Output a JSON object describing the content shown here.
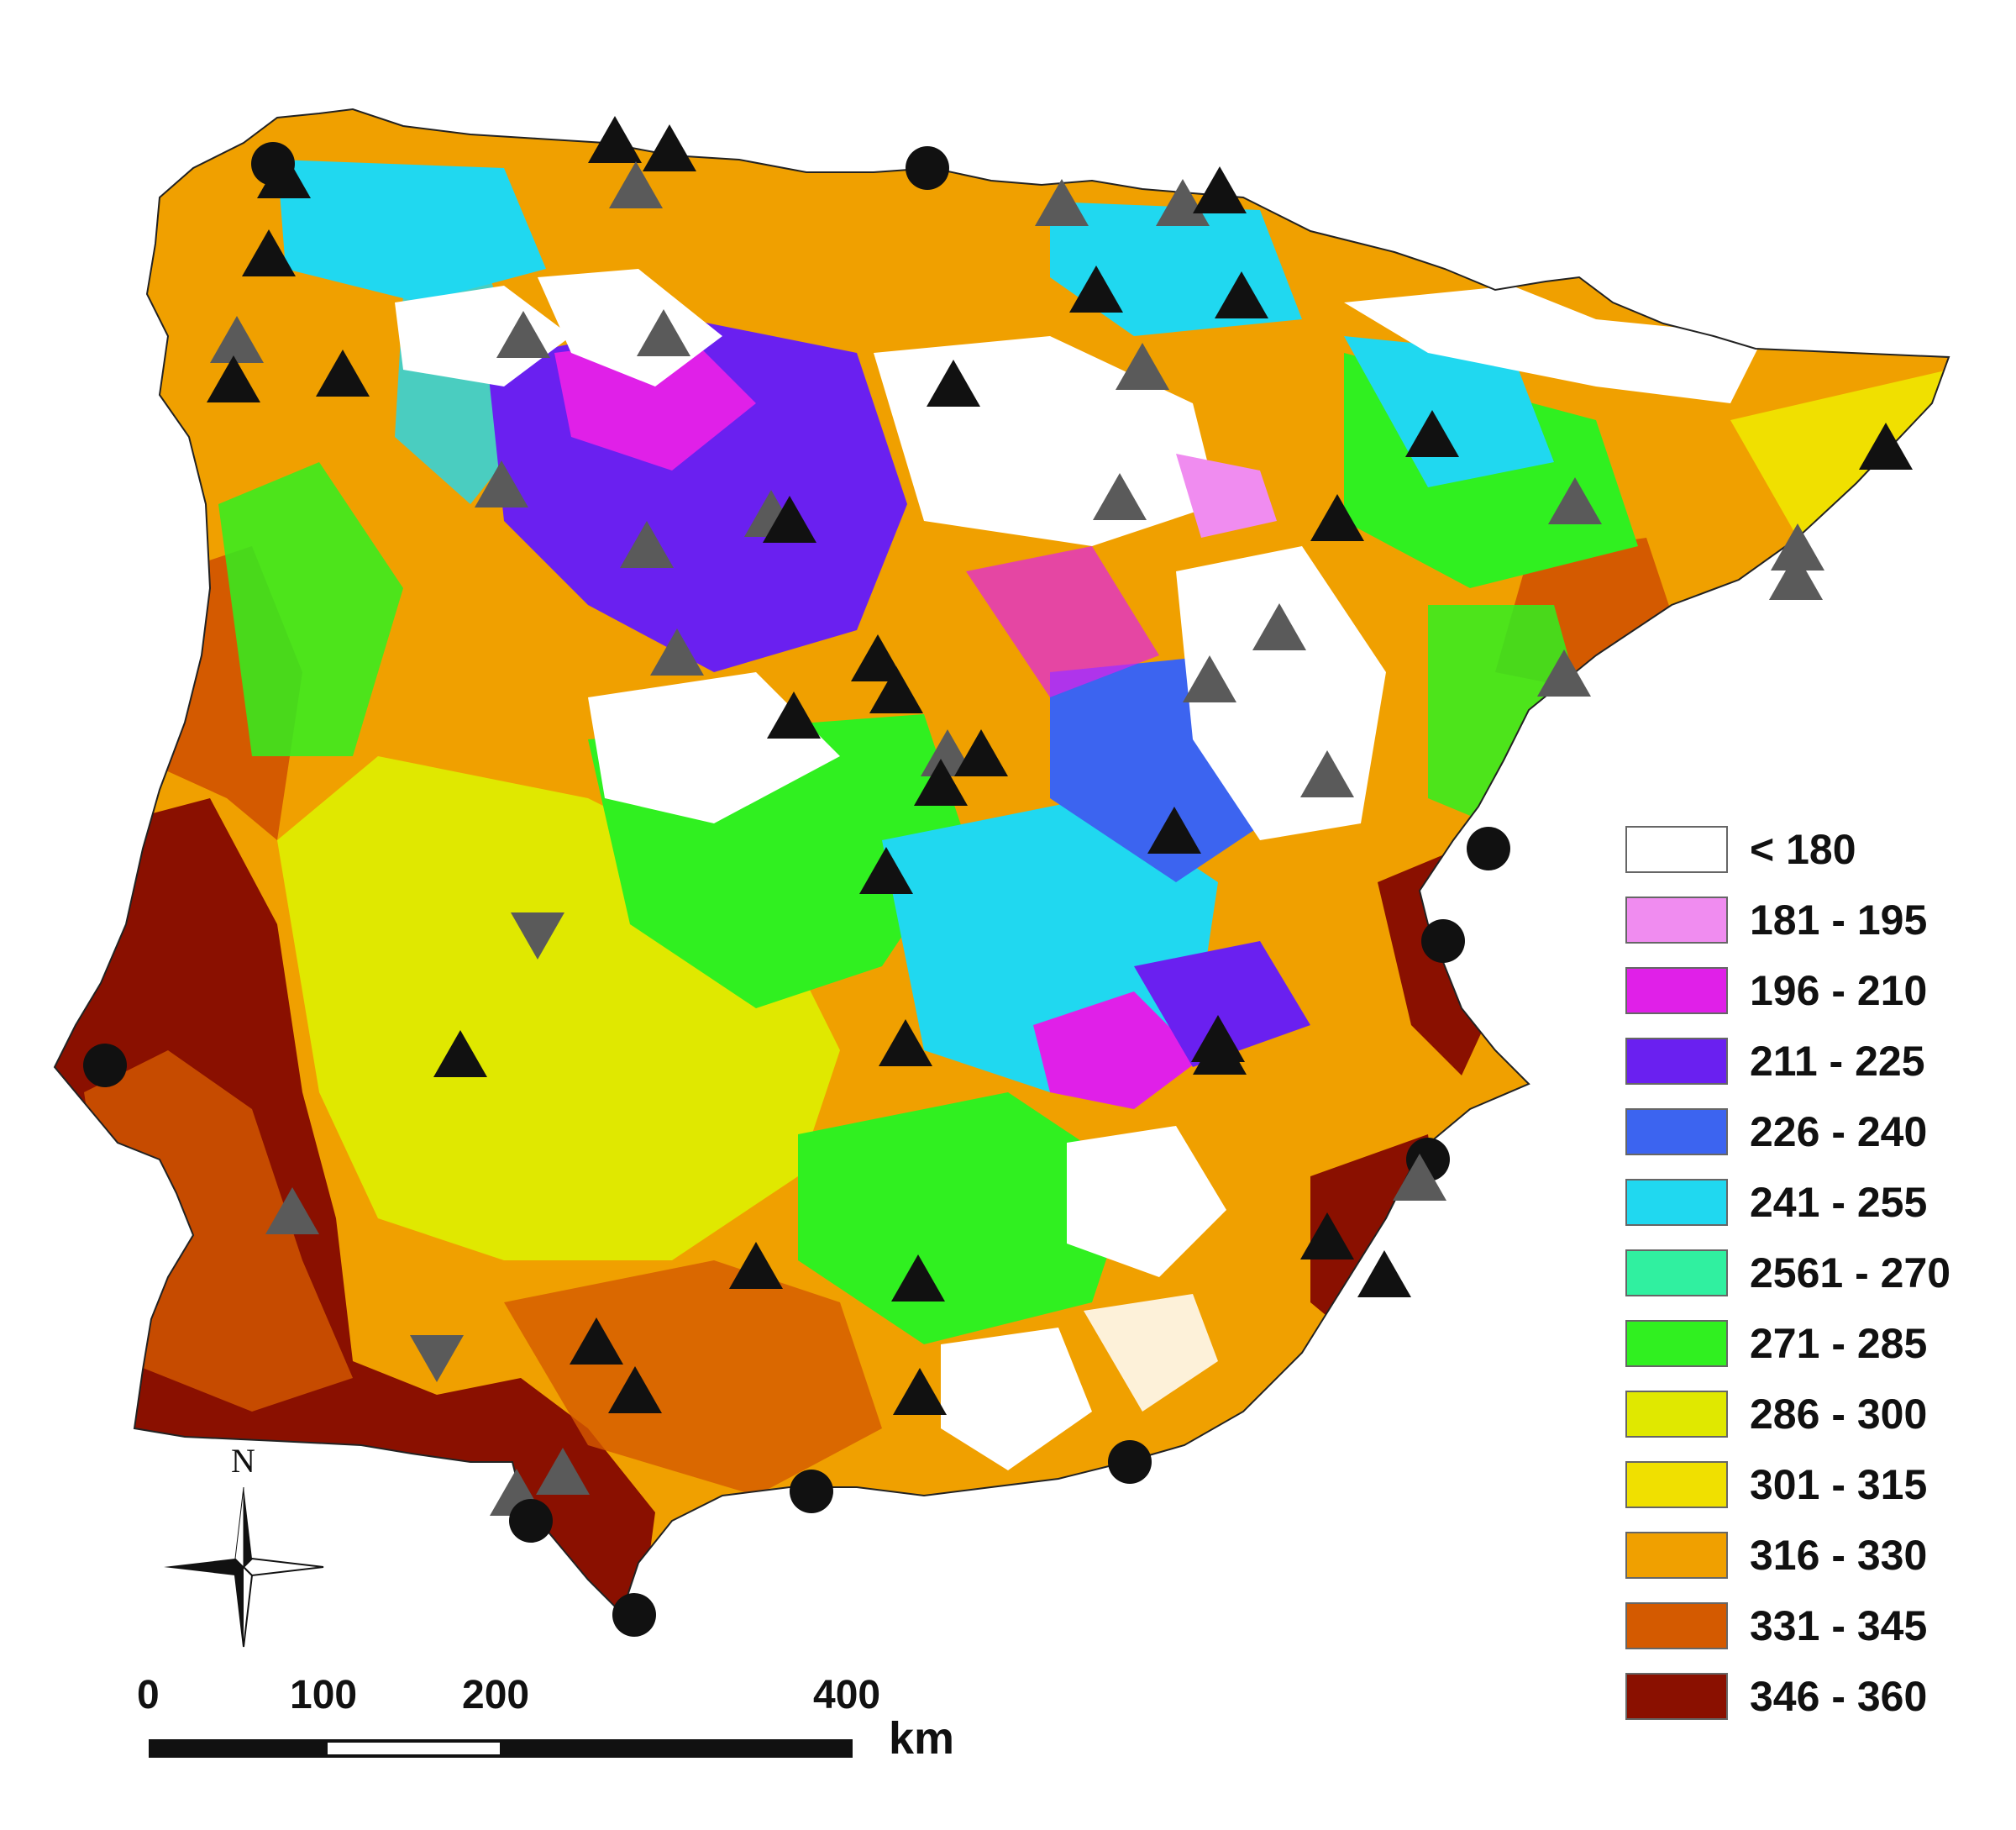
{
  "legend": {
    "title": "",
    "classes": [
      {
        "label": "< 180",
        "color": "#ffffff"
      },
      {
        "label": "181 - 195",
        "color": "#f08cf0"
      },
      {
        "label": "196 - 210",
        "color": "#e020e8"
      },
      {
        "label": "211 - 225",
        "color": "#6a20f0"
      },
      {
        "label": "226 - 240",
        "color": "#3c64f0"
      },
      {
        "label": "241 - 255",
        "color": "#20d8f0"
      },
      {
        "label": "2561 - 270",
        "color": "#30f0a0"
      },
      {
        "label": "271 - 285",
        "color": "#30f020"
      },
      {
        "label": "286 - 300",
        "color": "#e0e800"
      },
      {
        "label": "301 - 315",
        "color": "#f0e000"
      },
      {
        "label": "316 - 330",
        "color": "#f0a000"
      },
      {
        "label": "331 - 345",
        "color": "#d45a00"
      },
      {
        "label": "346 - 360",
        "color": "#8a1000"
      }
    ]
  },
  "scale_bar": {
    "ticks": [
      "0",
      "100",
      "200",
      "400"
    ],
    "unit": "km"
  },
  "north_arrow": {
    "label": "N",
    "icon": "compass-rose-icon"
  },
  "marker_colors": {
    "black": "#111111",
    "gray": "#5a5a5a"
  }
}
